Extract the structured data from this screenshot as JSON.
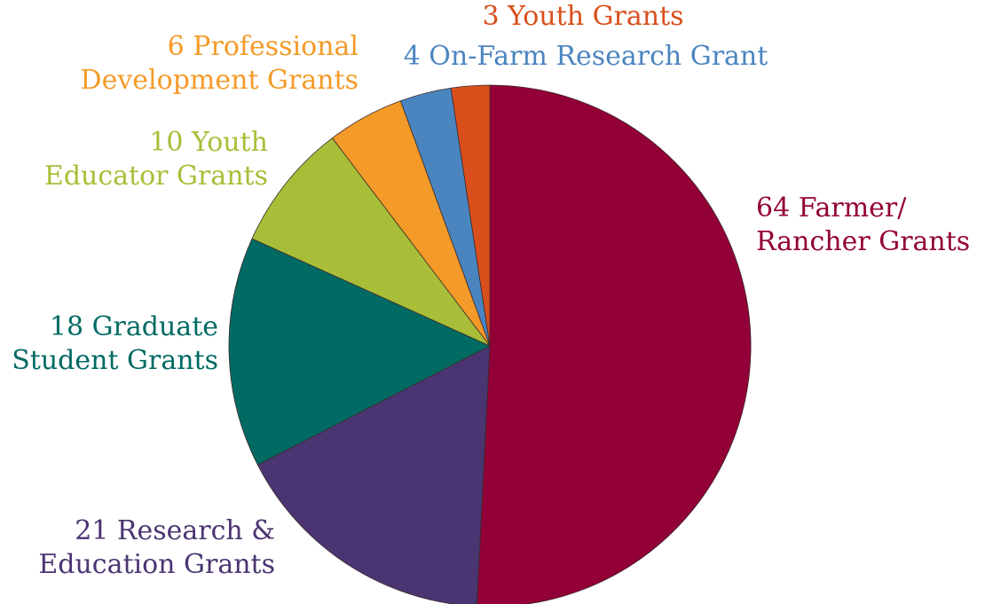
{
  "chart_data": {
    "type": "pie",
    "start": "12 o'clock",
    "direction": "clockwise",
    "slices": [
      {
        "key": "farmer",
        "value": 64,
        "color": "#930037",
        "label_lines": [
          "64 Farmer/",
          "Rancher Grants"
        ]
      },
      {
        "key": "research",
        "value": 21,
        "color": "#4a3572",
        "label_lines": [
          "21 Research &",
          "Education Grants"
        ]
      },
      {
        "key": "graduate",
        "value": 18,
        "color": "#006a63",
        "label_lines": [
          "18 Graduate",
          "Student Grants"
        ]
      },
      {
        "key": "youth-educator",
        "value": 10,
        "color": "#a8be38",
        "label_lines": [
          "10 Youth",
          "Educator Grants"
        ]
      },
      {
        "key": "professional",
        "value": 6,
        "color": "#f49a28",
        "label_lines": [
          "6 Professional",
          "Development Grants"
        ]
      },
      {
        "key": "onfarm",
        "value": 4,
        "color": "#4b85c0",
        "label_lines": [
          "4 On-Farm Research Grant"
        ]
      },
      {
        "key": "youth",
        "value": 3,
        "color": "#d94f1c",
        "label_lines": [
          "3 Youth Grants"
        ]
      }
    ]
  }
}
